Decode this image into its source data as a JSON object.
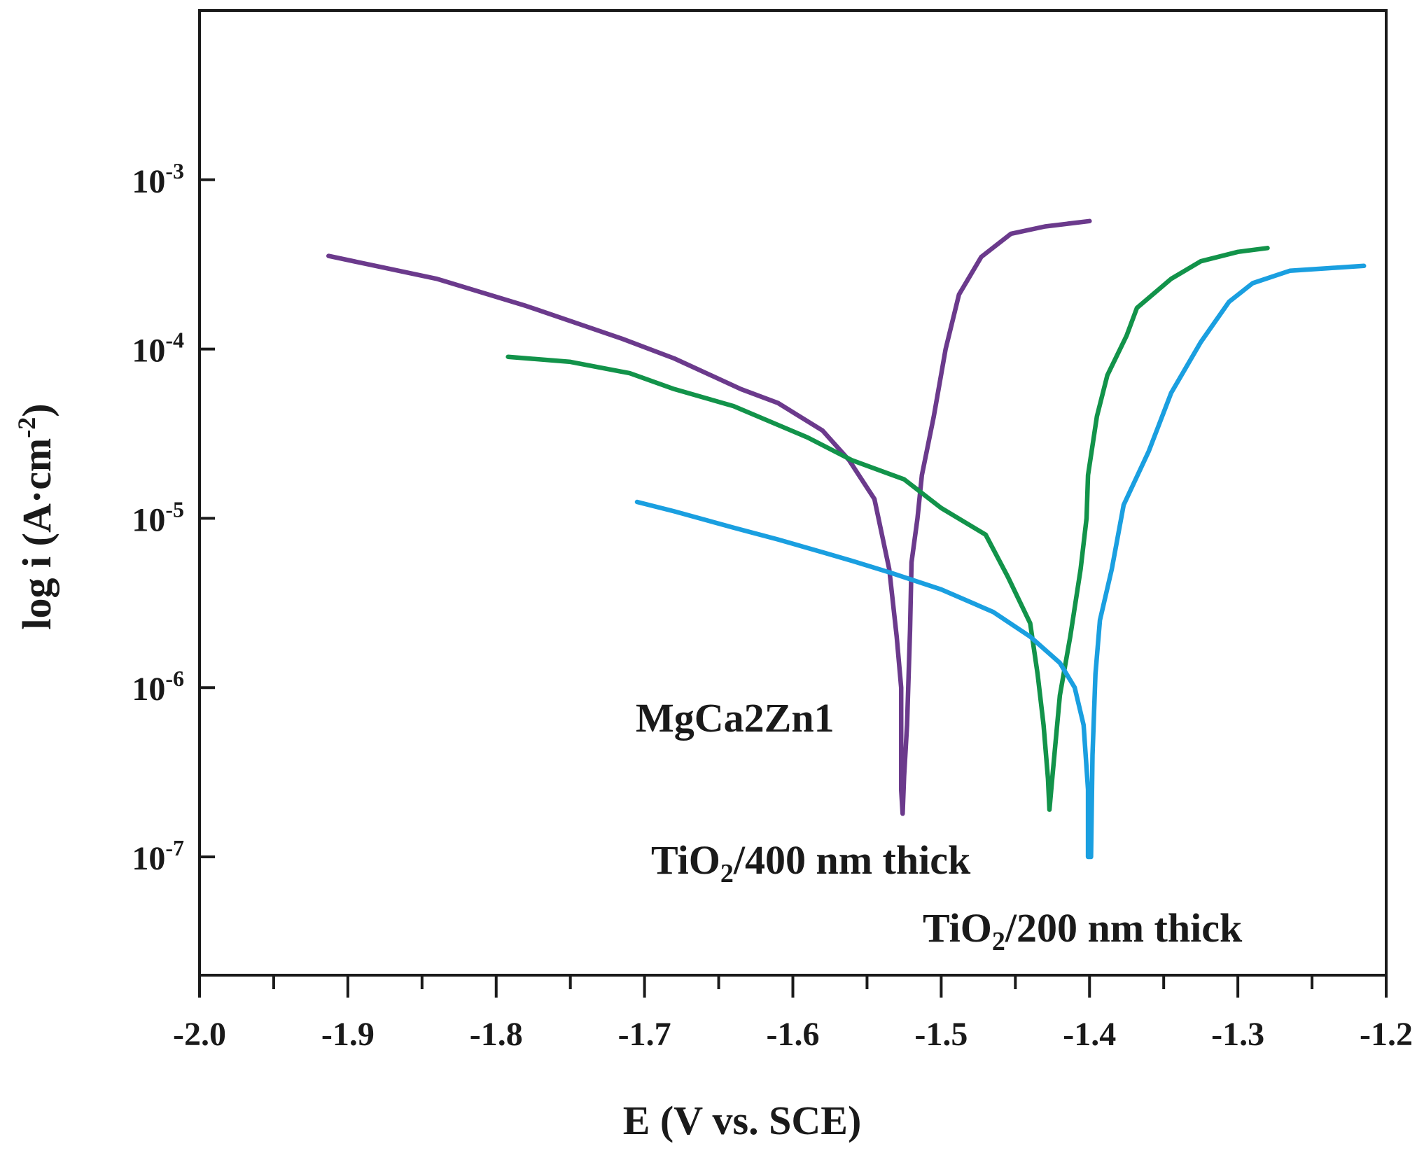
{
  "chart_data": {
    "type": "line",
    "xlabel": "E (V vs. SCE)",
    "ylabel": "log i (A·cm⁻²)",
    "xlim": [
      -2.0,
      -1.2
    ],
    "ylim": [
      2e-08,
      0.01
    ],
    "yscale": "log",
    "grid": false,
    "x_ticks": [
      "-2.0",
      "-1.9",
      "-1.8",
      "-1.7",
      "-1.6",
      "-1.5",
      "-1.4",
      "-1.3",
      "-1.2"
    ],
    "x_tick_values": [
      -2.0,
      -1.9,
      -1.8,
      -1.7,
      -1.6,
      -1.5,
      -1.4,
      -1.3,
      -1.2
    ],
    "y_ticks": [
      {
        "value": 0.001,
        "base": "10",
        "exp": "-3"
      },
      {
        "value": 0.0001,
        "base": "10",
        "exp": "-4"
      },
      {
        "value": 1e-05,
        "base": "10",
        "exp": "-5"
      },
      {
        "value": 1e-06,
        "base": "10",
        "exp": "-6"
      },
      {
        "value": 1e-07,
        "base": "10",
        "exp": "-7"
      }
    ],
    "series": [
      {
        "name": "MgCa2Zn1",
        "color": "#6b3a8c",
        "points": [
          [
            -1.913,
            0.000355
          ],
          [
            -1.84,
            0.00026
          ],
          [
            -1.78,
            0.00018
          ],
          [
            -1.715,
            0.000115
          ],
          [
            -1.68,
            8.8e-05
          ],
          [
            -1.635,
            5.8e-05
          ],
          [
            -1.61,
            4.8e-05
          ],
          [
            -1.58,
            3.3e-05
          ],
          [
            -1.562,
            2.2e-05
          ],
          [
            -1.545,
            1.3e-05
          ],
          [
            -1.535,
            5e-06
          ],
          [
            -1.53,
            2e-06
          ],
          [
            -1.527,
            1e-06
          ],
          [
            -1.527,
            2.5e-07
          ],
          [
            -1.526,
            1.8e-07
          ],
          [
            -1.525,
            3e-07
          ],
          [
            -1.523,
            6e-07
          ],
          [
            -1.521,
            2.2e-06
          ],
          [
            -1.52,
            5.5e-06
          ],
          [
            -1.516,
            1e-05
          ],
          [
            -1.513,
            1.8e-05
          ],
          [
            -1.505,
            4e-05
          ],
          [
            -1.497,
            0.0001
          ],
          [
            -1.488,
            0.00021
          ],
          [
            -1.473,
            0.00035
          ],
          [
            -1.453,
            0.00048
          ],
          [
            -1.43,
            0.00053
          ],
          [
            -1.4,
            0.00057
          ]
        ]
      },
      {
        "name": "TiO₂/400 nm thick",
        "color": "#12934a",
        "points": [
          [
            -1.792,
            9e-05
          ],
          [
            -1.75,
            8.4e-05
          ],
          [
            -1.71,
            7.2e-05
          ],
          [
            -1.68,
            5.8e-05
          ],
          [
            -1.64,
            4.6e-05
          ],
          [
            -1.59,
            3e-05
          ],
          [
            -1.56,
            2.2e-05
          ],
          [
            -1.525,
            1.7e-05
          ],
          [
            -1.5,
            1.15e-05
          ],
          [
            -1.47,
            8e-06
          ],
          [
            -1.455,
            4.5e-06
          ],
          [
            -1.44,
            2.4e-06
          ],
          [
            -1.435,
            1.2e-06
          ],
          [
            -1.431,
            6e-07
          ],
          [
            -1.428,
            2.9e-07
          ],
          [
            -1.427,
            1.9e-07
          ],
          [
            -1.425,
            3e-07
          ],
          [
            -1.42,
            9e-07
          ],
          [
            -1.413,
            2e-06
          ],
          [
            -1.406,
            5e-06
          ],
          [
            -1.402,
            1e-05
          ],
          [
            -1.401,
            1.8e-05
          ],
          [
            -1.395,
            4e-05
          ],
          [
            -1.388,
            7e-05
          ],
          [
            -1.375,
            0.00012
          ],
          [
            -1.368,
            0.000175
          ],
          [
            -1.345,
            0.00026
          ],
          [
            -1.325,
            0.00033
          ],
          [
            -1.3,
            0.000375
          ],
          [
            -1.28,
            0.000395
          ]
        ]
      },
      {
        "name": "TiO₂/200 nm thick",
        "color": "#1a9fe0",
        "points": [
          [
            -1.705,
            1.25e-05
          ],
          [
            -1.68,
            1.1e-05
          ],
          [
            -1.64,
            8.8e-06
          ],
          [
            -1.61,
            7.5e-06
          ],
          [
            -1.58,
            6.3e-06
          ],
          [
            -1.56,
            5.6e-06
          ],
          [
            -1.535,
            4.8e-06
          ],
          [
            -1.5,
            3.8e-06
          ],
          [
            -1.465,
            2.8e-06
          ],
          [
            -1.44,
            2e-06
          ],
          [
            -1.42,
            1.4e-06
          ],
          [
            -1.41,
            1e-06
          ],
          [
            -1.404,
            6e-07
          ],
          [
            -1.401,
            2.5e-07
          ],
          [
            -1.401,
            1e-07
          ],
          [
            -1.399,
            1e-07
          ],
          [
            -1.398,
            4e-07
          ],
          [
            -1.396,
            1.2e-06
          ],
          [
            -1.393,
            2.5e-06
          ],
          [
            -1.385,
            5e-06
          ],
          [
            -1.377,
            1.2e-05
          ],
          [
            -1.36,
            2.5e-05
          ],
          [
            -1.345,
            5.5e-05
          ],
          [
            -1.325,
            0.00011
          ],
          [
            -1.306,
            0.00019
          ],
          [
            -1.29,
            0.000245
          ],
          [
            -1.265,
            0.00029
          ],
          [
            -1.24,
            0.0003
          ],
          [
            -1.215,
            0.00031
          ]
        ]
      }
    ]
  }
}
